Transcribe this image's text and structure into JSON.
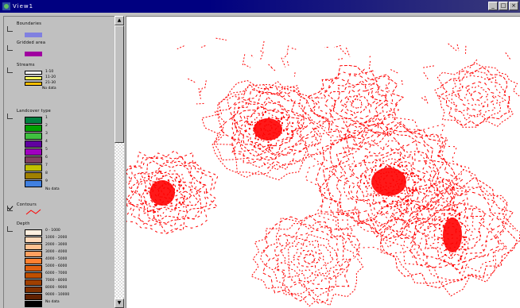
{
  "window": {
    "title": "View1",
    "buttons": [
      "_",
      "□",
      "×"
    ]
  },
  "toc": {
    "layers": [
      {
        "id": "layer1",
        "name": "Boundaries",
        "checked": false,
        "legend": [
          {
            "color": "#8080e0",
            "label": ""
          }
        ]
      },
      {
        "id": "layer2",
        "name": "Gridded area",
        "checked": false,
        "legend": [
          {
            "color": "#a000a0",
            "label": ""
          }
        ]
      },
      {
        "id": "layer3",
        "name": "Streams",
        "checked": false,
        "legend": [
          {
            "color": "#ffffff",
            "label": "1-10"
          },
          {
            "color": "#ffff60",
            "label": "11-20"
          },
          {
            "color": "#ffc000",
            "label": "21-30"
          },
          {
            "color": "#ffffff",
            "label": "No data"
          }
        ]
      },
      {
        "id": "layer4",
        "name": "Landcover type",
        "checked": false,
        "legend": [
          {
            "color": "#008040",
            "label": "1"
          },
          {
            "color": "#00a000",
            "label": "2"
          },
          {
            "color": "#40c040",
            "label": "3"
          },
          {
            "color": "#6000a0",
            "label": "4"
          },
          {
            "color": "#a000c0",
            "label": "5"
          },
          {
            "color": "#804060",
            "label": "6"
          },
          {
            "color": "#c0c000",
            "label": "7"
          },
          {
            "color": "#a08000",
            "label": "8"
          },
          {
            "color": "#4080e0",
            "label": "9"
          },
          {
            "color": "#c0c0c0",
            "label": "No data"
          }
        ]
      },
      {
        "id": "layer5",
        "name": "Contours",
        "checked": true,
        "legend": [
          {
            "color": "#ff0000",
            "label": "",
            "type": "line"
          }
        ]
      },
      {
        "id": "layer6",
        "name": "Depth",
        "checked": false,
        "legend": [
          {
            "color": "#fff0e0",
            "label": "0 - 1000"
          },
          {
            "color": "#ffd8b8",
            "label": "1000 - 2000"
          },
          {
            "color": "#ffc090",
            "label": "2000 - 3000"
          },
          {
            "color": "#ffa060",
            "label": "3000 - 4000"
          },
          {
            "color": "#ff8030",
            "label": "4000 - 5000"
          },
          {
            "color": "#e06010",
            "label": "5000 - 6000"
          },
          {
            "color": "#c05000",
            "label": "6000 - 7000"
          },
          {
            "color": "#a04000",
            "label": "7000 - 8000"
          },
          {
            "color": "#803000",
            "label": "8000 - 9000"
          },
          {
            "color": "#602000",
            "label": "9000 - 10000"
          },
          {
            "color": "#000000",
            "label": "No data"
          }
        ]
      }
    ]
  },
  "map": {
    "contour_color": "#ff0000",
    "background": "#ffffff"
  }
}
